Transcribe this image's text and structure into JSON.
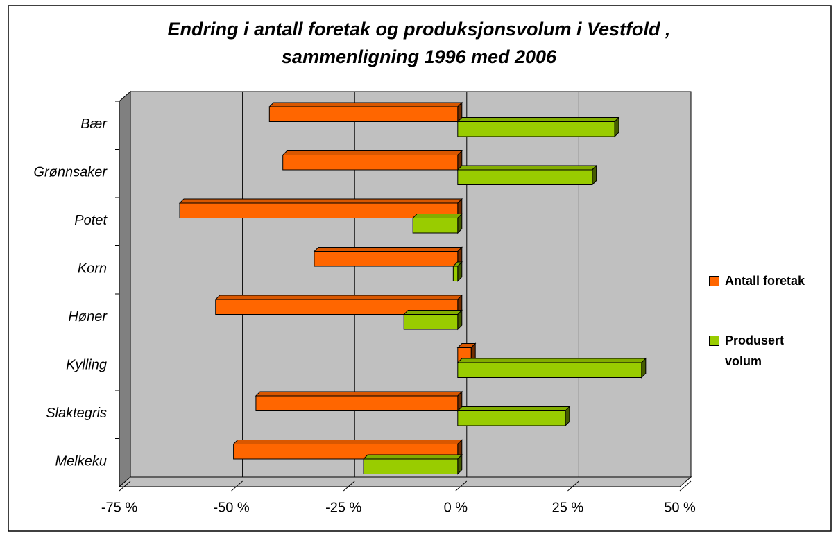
{
  "chart_data": {
    "type": "bar",
    "orientation": "horizontal",
    "title": "Endring i antall foretak og produksjonsvolum i Vestfold ,\nsammenligning 1996 med 2006",
    "categories": [
      "Bær",
      "Grønnsaker",
      "Potet",
      "Korn",
      "Høner",
      "Kylling",
      "Slaktegris",
      "Melkeku"
    ],
    "series": [
      {
        "name": "Antall foretak",
        "color": "#ff6600",
        "values": [
          -42,
          -39,
          -62,
          -32,
          -54,
          3,
          -45,
          -50
        ]
      },
      {
        "name": "Produsert volum",
        "color": "#99cc00",
        "values": [
          35,
          30,
          -10,
          -1,
          -12,
          41,
          24,
          -21
        ]
      }
    ],
    "xlim": [
      -75,
      50
    ],
    "xticks": [
      {
        "value": -75,
        "label": "-75 %"
      },
      {
        "value": -50,
        "label": "-50 %"
      },
      {
        "value": -25,
        "label": "-25 %"
      },
      {
        "value": 0,
        "label": "0 %"
      },
      {
        "value": 25,
        "label": "25 %"
      },
      {
        "value": 50,
        "label": "50 %"
      }
    ],
    "grid": true,
    "legend": "right"
  }
}
